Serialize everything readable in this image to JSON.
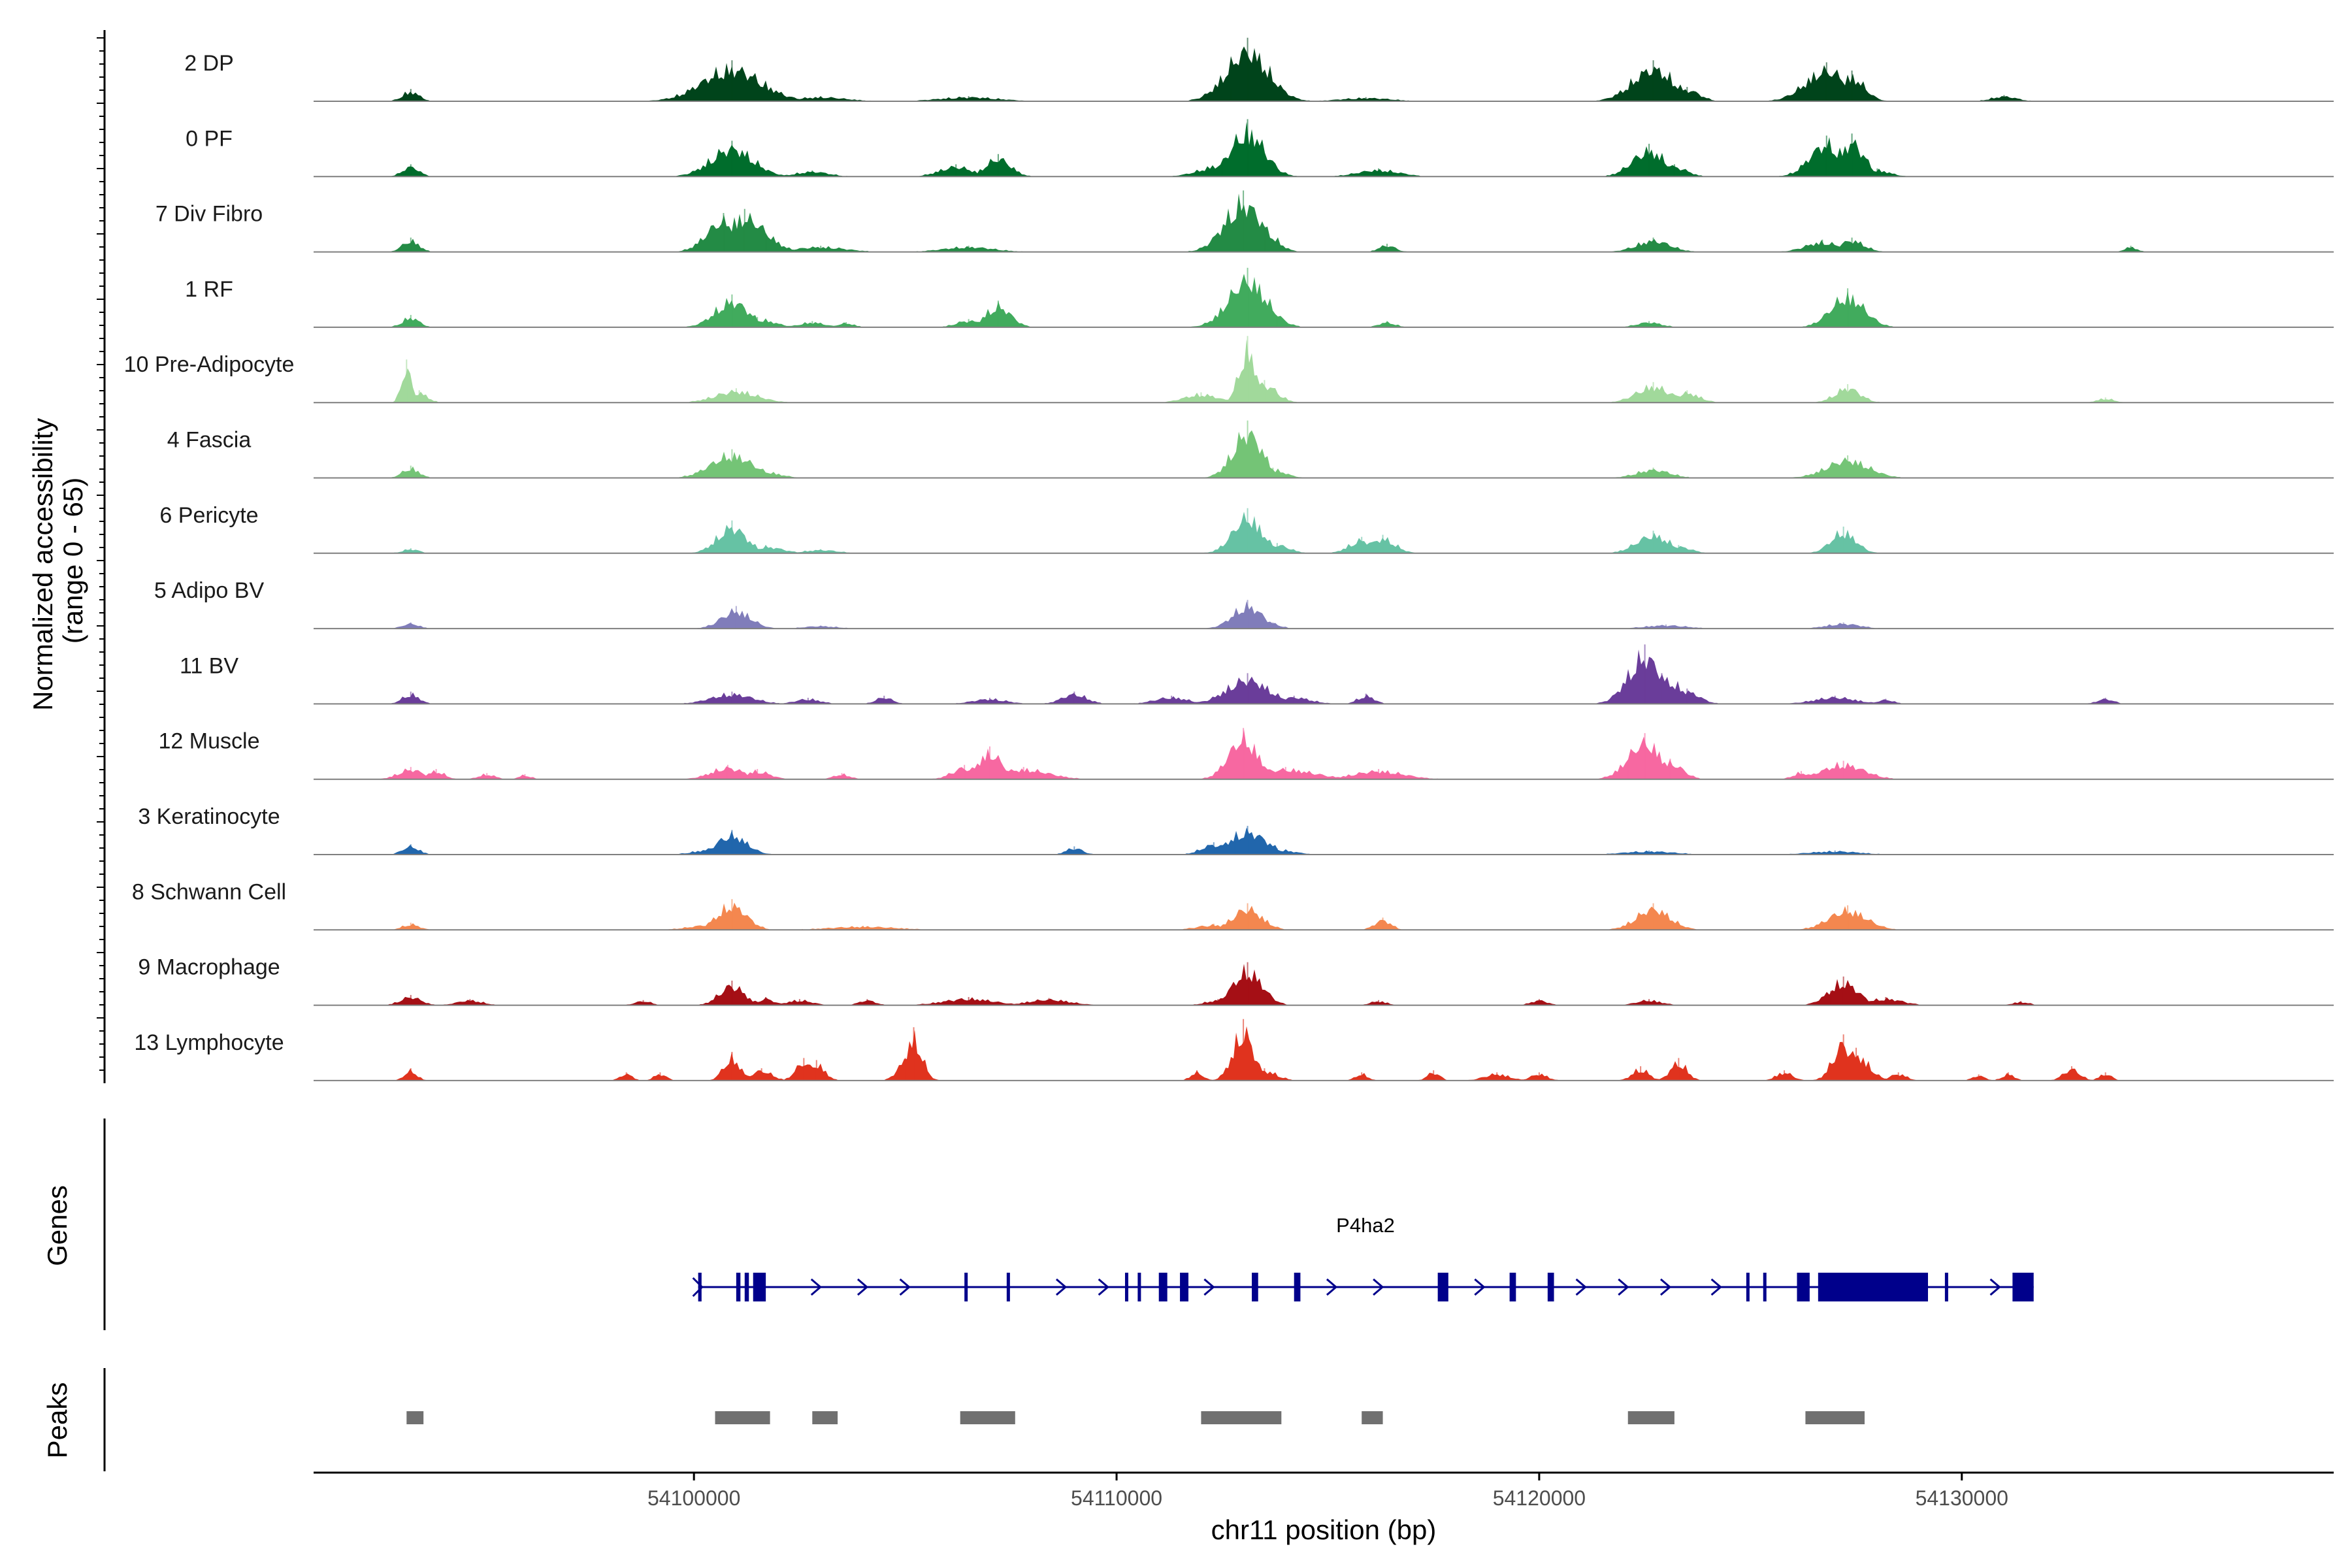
{
  "chart_data": {
    "type": "area",
    "title": "",
    "xlabel": "chr11 position (bp)",
    "ylabel": "Normalized accessibility\n(range 0 - 65)",
    "ylabel_lines": [
      "Normalized accessibility",
      "(range 0 - 65)"
    ],
    "ylim": [
      0,
      65
    ],
    "xlim": [
      54091000,
      54138800
    ],
    "x_ticks": [
      54100000,
      54110000,
      54120000,
      54130000
    ],
    "x_tick_labels": [
      "54100000",
      "54110000",
      "54120000",
      "54130000"
    ],
    "colors": {
      "baseline": "#7f7f7f",
      "axis": "#000000",
      "gene": "#00008b",
      "peak": "#707070"
    },
    "tracks": [
      {
        "label": "2 DP",
        "color": "#00441b",
        "peaks": [
          [
            54093300,
            12,
            200
          ],
          [
            54100900,
            40,
            700
          ],
          [
            54103000,
            5,
            600
          ],
          [
            54106500,
            5,
            700
          ],
          [
            54113100,
            62,
            500
          ],
          [
            54112700,
            12,
            400
          ],
          [
            54115900,
            4,
            600
          ],
          [
            54122700,
            40,
            500
          ],
          [
            54123500,
            14,
            300
          ],
          [
            54126800,
            38,
            500
          ],
          [
            54127400,
            30,
            300
          ],
          [
            54131000,
            6,
            300
          ]
        ]
      },
      {
        "label": "0 PF",
        "color": "#006d2c",
        "peaks": [
          [
            54093300,
            12,
            200
          ],
          [
            54100900,
            35,
            500
          ],
          [
            54102800,
            6,
            400
          ],
          [
            54106200,
            12,
            400
          ],
          [
            54107200,
            22,
            300
          ],
          [
            54112500,
            14,
            500
          ],
          [
            54113100,
            56,
            400
          ],
          [
            54116200,
            8,
            500
          ],
          [
            54122600,
            32,
            400
          ],
          [
            54123200,
            12,
            300
          ],
          [
            54126800,
            40,
            400
          ],
          [
            54127400,
            42,
            300
          ],
          [
            54128000,
            8,
            300
          ]
        ]
      },
      {
        "label": "7 Div Fibro",
        "color": "#238b45",
        "peaks": [
          [
            54093300,
            14,
            200
          ],
          [
            54100700,
            38,
            400
          ],
          [
            54101200,
            42,
            500
          ],
          [
            54101700,
            18,
            300
          ],
          [
            54103000,
            6,
            600
          ],
          [
            54106500,
            6,
            600
          ],
          [
            54113000,
            60,
            450
          ],
          [
            54113500,
            25,
            300
          ],
          [
            54116400,
            8,
            200
          ],
          [
            54122700,
            14,
            400
          ],
          [
            54126700,
            12,
            400
          ],
          [
            54127400,
            14,
            300
          ],
          [
            54134000,
            6,
            150
          ]
        ]
      },
      {
        "label": "1 RF",
        "color": "#41ab5d",
        "peaks": [
          [
            54093300,
            12,
            200
          ],
          [
            54100900,
            32,
            400
          ],
          [
            54101500,
            10,
            400
          ],
          [
            54102800,
            6,
            300
          ],
          [
            54103600,
            5,
            200
          ],
          [
            54106500,
            8,
            300
          ],
          [
            54107200,
            26,
            300
          ],
          [
            54113100,
            58,
            450
          ],
          [
            54113800,
            10,
            200
          ],
          [
            54116400,
            6,
            200
          ],
          [
            54122600,
            6,
            300
          ],
          [
            54127300,
            38,
            400
          ]
        ]
      },
      {
        "label": "10 Pre-Adipocyte",
        "color": "#a1d99b",
        "peaks": [
          [
            54093200,
            42,
            120
          ],
          [
            54093500,
            12,
            200
          ],
          [
            54101000,
            14,
            500
          ],
          [
            54113100,
            65,
            200
          ],
          [
            54113500,
            22,
            300
          ],
          [
            54112000,
            10,
            400
          ],
          [
            54122700,
            20,
            400
          ],
          [
            54123500,
            12,
            300
          ],
          [
            54127300,
            18,
            300
          ],
          [
            54133400,
            5,
            200
          ]
        ]
      },
      {
        "label": "4 Fascia",
        "color": "#74c476",
        "peaks": [
          [
            54093300,
            12,
            200
          ],
          [
            54100900,
            28,
            500
          ],
          [
            54101600,
            8,
            400
          ],
          [
            54113100,
            56,
            350
          ],
          [
            54113700,
            10,
            300
          ],
          [
            54122700,
            10,
            400
          ],
          [
            54127300,
            22,
            500
          ]
        ]
      },
      {
        "label": "6 Pericyte",
        "color": "#66c2a4",
        "peaks": [
          [
            54093300,
            5,
            200
          ],
          [
            54100900,
            32,
            350
          ],
          [
            54101700,
            8,
            400
          ],
          [
            54103000,
            4,
            400
          ],
          [
            54113100,
            44,
            350
          ],
          [
            54113800,
            10,
            300
          ],
          [
            54115800,
            16,
            300
          ],
          [
            54116300,
            18,
            300
          ],
          [
            54122700,
            22,
            400
          ],
          [
            54123300,
            8,
            300
          ],
          [
            54127200,
            26,
            300
          ]
        ]
      },
      {
        "label": "5 Adipo BV",
        "color": "#807dba",
        "peaks": [
          [
            54093300,
            6,
            200
          ],
          [
            54101000,
            22,
            350
          ],
          [
            54103000,
            3,
            400
          ],
          [
            54113100,
            28,
            350
          ],
          [
            54113700,
            6,
            200
          ],
          [
            54123000,
            4,
            500
          ],
          [
            54127200,
            6,
            400
          ]
        ]
      },
      {
        "label": "11 BV",
        "color": "#6a3d9a",
        "peaks": [
          [
            54093300,
            12,
            200
          ],
          [
            54100900,
            12,
            500
          ],
          [
            54102700,
            6,
            300
          ],
          [
            54104500,
            8,
            200
          ],
          [
            54107000,
            6,
            400
          ],
          [
            54109000,
            12,
            300
          ],
          [
            54111300,
            8,
            400
          ],
          [
            54113100,
            30,
            500
          ],
          [
            54114200,
            8,
            400
          ],
          [
            54115900,
            10,
            200
          ],
          [
            54122500,
            58,
            400
          ],
          [
            54122900,
            30,
            500
          ],
          [
            54123500,
            15,
            300
          ],
          [
            54127000,
            8,
            500
          ],
          [
            54128200,
            5,
            200
          ],
          [
            54133400,
            6,
            200
          ]
        ]
      },
      {
        "label": "12 Muscle",
        "color": "#f768a1",
        "peaks": [
          [
            54093300,
            12,
            300
          ],
          [
            54093900,
            10,
            200
          ],
          [
            54095100,
            6,
            200
          ],
          [
            54096000,
            5,
            150
          ],
          [
            54100800,
            14,
            400
          ],
          [
            54101500,
            10,
            300
          ],
          [
            54103500,
            6,
            200
          ],
          [
            54107000,
            32,
            300
          ],
          [
            54106400,
            14,
            300
          ],
          [
            54107800,
            12,
            600
          ],
          [
            54113000,
            50,
            350
          ],
          [
            54114000,
            12,
            700
          ],
          [
            54116200,
            10,
            600
          ],
          [
            54122500,
            45,
            400
          ],
          [
            54123100,
            20,
            300
          ],
          [
            54122100,
            14,
            200
          ],
          [
            54127200,
            18,
            500
          ],
          [
            54126200,
            8,
            200
          ]
        ]
      },
      {
        "label": "3 Keratinocyte",
        "color": "#2166ac",
        "peaks": [
          [
            54093300,
            10,
            200
          ],
          [
            54100900,
            24,
            350
          ],
          [
            54100400,
            6,
            400
          ],
          [
            54109000,
            8,
            200
          ],
          [
            54112300,
            12,
            300
          ],
          [
            54113100,
            28,
            450
          ],
          [
            54112800,
            16,
            300
          ],
          [
            54113800,
            6,
            400
          ],
          [
            54122600,
            4,
            600
          ],
          [
            54127000,
            4,
            600
          ]
        ]
      },
      {
        "label": "8 Schwann Cell",
        "color": "#f4874f",
        "peaks": [
          [
            54093300,
            7,
            200
          ],
          [
            54100900,
            30,
            350
          ],
          [
            54100400,
            6,
            500
          ],
          [
            54104000,
            4,
            800
          ],
          [
            54113100,
            26,
            350
          ],
          [
            54112300,
            6,
            400
          ],
          [
            54116300,
            12,
            200
          ],
          [
            54122700,
            26,
            400
          ],
          [
            54122300,
            8,
            300
          ],
          [
            54127300,
            24,
            450
          ],
          [
            54126800,
            8,
            300
          ]
        ]
      },
      {
        "label": "9 Macrophage",
        "color": "#a50f15",
        "peaks": [
          [
            54093300,
            10,
            250
          ],
          [
            54094700,
            6,
            300
          ],
          [
            54098800,
            5,
            200
          ],
          [
            54100900,
            24,
            300
          ],
          [
            54101700,
            8,
            200
          ],
          [
            54102500,
            6,
            300
          ],
          [
            54104100,
            6,
            200
          ],
          [
            54106500,
            8,
            600
          ],
          [
            54108400,
            7,
            500
          ],
          [
            54112400,
            6,
            300
          ],
          [
            54113100,
            42,
            350
          ],
          [
            54116200,
            5,
            200
          ],
          [
            54120000,
            6,
            200
          ],
          [
            54122600,
            6,
            300
          ],
          [
            54127200,
            28,
            350
          ],
          [
            54126900,
            14,
            200
          ],
          [
            54128200,
            8,
            400
          ],
          [
            54131400,
            4,
            200
          ]
        ]
      },
      {
        "label": "13 Lymphocyte",
        "color": "#e0331e",
        "peaks": [
          [
            54093300,
            12,
            150
          ],
          [
            54098400,
            8,
            150
          ],
          [
            54099200,
            8,
            150
          ],
          [
            54100900,
            28,
            200
          ],
          [
            54101600,
            12,
            250
          ],
          [
            54102600,
            22,
            200
          ],
          [
            54102900,
            20,
            200
          ],
          [
            54105200,
            52,
            200
          ],
          [
            54105000,
            22,
            200
          ],
          [
            54111900,
            10,
            150
          ],
          [
            54113000,
            60,
            250
          ],
          [
            54113500,
            12,
            300
          ],
          [
            54115800,
            8,
            150
          ],
          [
            54117500,
            10,
            150
          ],
          [
            54119000,
            8,
            300
          ],
          [
            54120000,
            8,
            200
          ],
          [
            54122400,
            14,
            200
          ],
          [
            54123300,
            22,
            200
          ],
          [
            54125800,
            10,
            200
          ],
          [
            54127200,
            45,
            250
          ],
          [
            54127500,
            32,
            300
          ],
          [
            54128500,
            8,
            200
          ],
          [
            54130400,
            6,
            150
          ],
          [
            54131100,
            8,
            150
          ],
          [
            54132600,
            14,
            200
          ],
          [
            54133400,
            8,
            150
          ]
        ]
      }
    ],
    "gene_track": {
      "label": "Genes",
      "gene_name": "P4ha2",
      "strand": "+",
      "start": 54100100,
      "end": 54131700,
      "exons": [
        [
          54100100,
          54100180
        ],
        [
          54101000,
          54101100
        ],
        [
          54101200,
          54101300
        ],
        [
          54101400,
          54101700
        ],
        [
          54106400,
          54106450
        ],
        [
          54107400,
          54107450
        ],
        [
          54110200,
          54110250
        ],
        [
          54110500,
          54110550
        ],
        [
          54111000,
          54111200
        ],
        [
          54111500,
          54111700
        ],
        [
          54113200,
          54113350
        ],
        [
          54114200,
          54114350
        ],
        [
          54117600,
          54117850
        ],
        [
          54119300,
          54119450
        ],
        [
          54120200,
          54120350
        ],
        [
          54124900,
          54124950
        ],
        [
          54125300,
          54125350
        ],
        [
          54126100,
          54126400
        ],
        [
          54126600,
          54129200
        ],
        [
          54129600,
          54129650
        ],
        [
          54131200,
          54131700
        ]
      ],
      "arrows": [
        54102900,
        54104000,
        54105000,
        54108700,
        54109700,
        54112200,
        54115100,
        54116200,
        54118600,
        54121000,
        54122000,
        54123000,
        54124200,
        54130800
      ]
    },
    "peaks_track": {
      "label": "Peaks",
      "regions": [
        [
          54093200,
          54093600
        ],
        [
          54100500,
          54101800
        ],
        [
          54102800,
          54103400
        ],
        [
          54106300,
          54107600
        ],
        [
          54112000,
          54113900
        ],
        [
          54115800,
          54116300
        ],
        [
          54122100,
          54123200
        ],
        [
          54126300,
          54127700
        ]
      ]
    }
  }
}
